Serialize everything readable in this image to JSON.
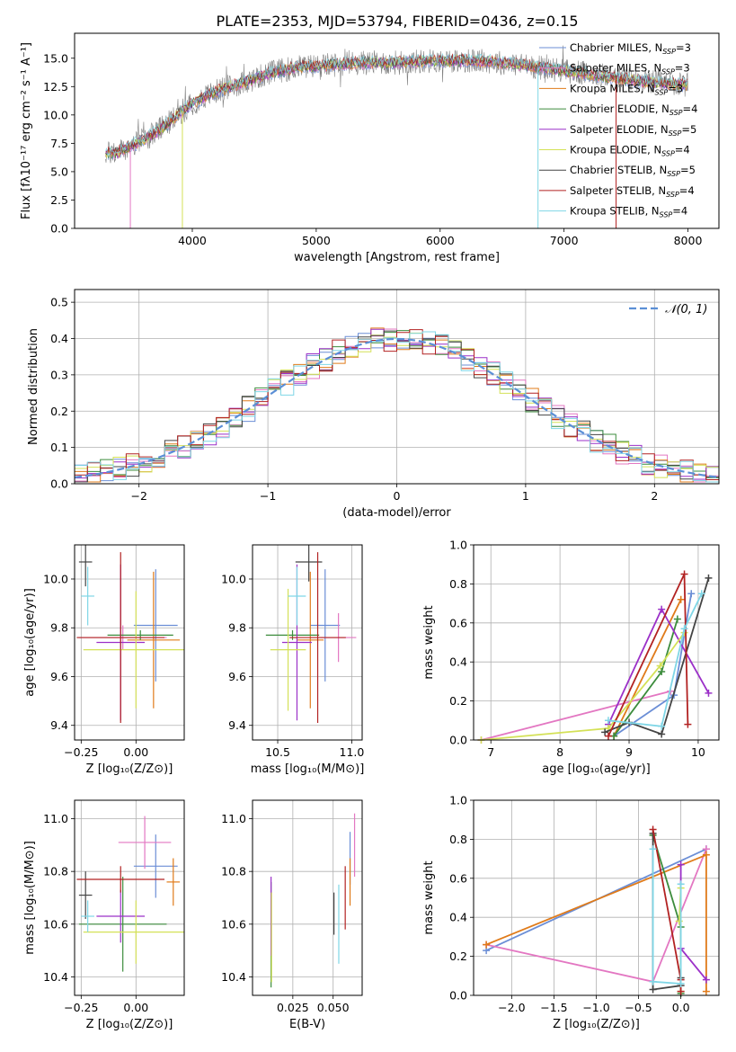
{
  "figure_title": "PLATE=2353, MJD=53794, FIBERID=0436, z=0.15",
  "colors": {
    "chabrier_miles": "#6b8ed6",
    "salpeter_miles": "#e377c2",
    "kroupa_miles": "#e07b1a",
    "chabrier_elodie": "#3c8c3c",
    "salpeter_elodie": "#9b30c8",
    "kroupa_elodie": "#d4e157",
    "chabrier_stelib": "#444444",
    "salpeter_stelib": "#b22222",
    "kroupa_stelib": "#7fd6e6",
    "data_spectrum": "#7f7f7f",
    "normal_curve": "#5b8fd6"
  },
  "chart_data": [
    {
      "id": "spectrum",
      "type": "line",
      "xlabel": "wavelength [Angstrom, rest frame]",
      "ylabel": "Flux [fλ10⁻¹⁷ erg cm⁻² s⁻¹ A⁻¹]",
      "xlim": [
        3050,
        8250
      ],
      "ylim": [
        0,
        17.2
      ],
      "xticks": [
        "4000",
        "5000",
        "6000",
        "7000",
        "8000"
      ],
      "yticks": [
        "0.0",
        "2.5",
        "5.0",
        "7.5",
        "10.0",
        "12.5",
        "15.0"
      ],
      "grid": false,
      "legend_position": "right",
      "continuum": [
        [
          3300,
          6.6
        ],
        [
          3400,
          6.7
        ],
        [
          3500,
          7.2
        ],
        [
          3600,
          7.8
        ],
        [
          3700,
          8.4
        ],
        [
          3800,
          9.2
        ],
        [
          3900,
          10.2
        ],
        [
          4000,
          11.0
        ],
        [
          4100,
          11.6
        ],
        [
          4200,
          12.1
        ],
        [
          4300,
          12.5
        ],
        [
          4400,
          12.8
        ],
        [
          4500,
          13.2
        ],
        [
          4600,
          13.6
        ],
        [
          4700,
          13.9
        ],
        [
          4800,
          14.1
        ],
        [
          4900,
          14.3
        ],
        [
          5000,
          14.3
        ],
        [
          5100,
          14.4
        ],
        [
          5200,
          14.5
        ],
        [
          5400,
          14.6
        ],
        [
          5600,
          14.6
        ],
        [
          5800,
          14.7
        ],
        [
          6000,
          14.8
        ],
        [
          6200,
          14.8
        ],
        [
          6400,
          14.7
        ],
        [
          6600,
          14.5
        ],
        [
          6800,
          14.2
        ],
        [
          7000,
          13.9
        ],
        [
          7200,
          13.6
        ],
        [
          7400,
          13.3
        ],
        [
          7600,
          13.0
        ],
        [
          7800,
          12.8
        ],
        [
          8000,
          12.6
        ]
      ],
      "legend": [
        {
          "label": "Chabrier MILES, N",
          "sub": "SSP",
          "tail": "=3",
          "color_key": "chabrier_miles"
        },
        {
          "label": "Salpeter MILES, N",
          "sub": "SSP",
          "tail": "=3",
          "color_key": "salpeter_miles"
        },
        {
          "label": "Kroupa MILES, N",
          "sub": "SSP",
          "tail": "=3",
          "color_key": "kroupa_miles"
        },
        {
          "label": "Chabrier ELODIE, N",
          "sub": "SSP",
          "tail": "=4",
          "color_key": "chabrier_elodie"
        },
        {
          "label": "Salpeter ELODIE, N",
          "sub": "SSP",
          "tail": "=5",
          "color_key": "salpeter_elodie"
        },
        {
          "label": "Kroupa ELODIE, N",
          "sub": "SSP",
          "tail": "=4",
          "color_key": "kroupa_elodie"
        },
        {
          "label": "Chabrier STELIB, N",
          "sub": "SSP",
          "tail": "=5",
          "color_key": "chabrier_stelib"
        },
        {
          "label": "Salpeter STELIB, N",
          "sub": "SSP",
          "tail": "=4",
          "color_key": "salpeter_stelib"
        },
        {
          "label": "Kroupa STELIB, N",
          "sub": "SSP",
          "tail": "=4",
          "color_key": "kroupa_stelib"
        }
      ],
      "vertical_drops": [
        {
          "x": 3500,
          "color_key": "salpeter_miles"
        },
        {
          "x": 3920,
          "color_key": "kroupa_elodie"
        },
        {
          "x": 6790,
          "color_key": "kroupa_stelib"
        },
        {
          "x": 7420,
          "color_key": "salpeter_stelib"
        }
      ]
    },
    {
      "id": "residuals",
      "type": "histogram",
      "xlabel": "(data-model)/error",
      "ylabel": "Normed distribution",
      "xlim": [
        -2.5,
        2.5
      ],
      "ylim": [
        0,
        0.535
      ],
      "xticks": [
        "−2",
        "−1",
        "0",
        "1",
        "2"
      ],
      "yticks": [
        "0.0",
        "0.1",
        "0.2",
        "0.3",
        "0.4",
        "0.5"
      ],
      "grid": true,
      "legend_position": "top-right",
      "curve_label": "𝒩(0, 1)",
      "bin_width": 0.1
    },
    {
      "id": "age_vs_Z",
      "type": "errorbar",
      "xlabel": "Z [log₁₀(Z/Z⊙)]",
      "ylabel": "age  [log₁₀(age/yr)]",
      "xlim": [
        -0.28,
        0.22
      ],
      "ylim": [
        9.34,
        10.14
      ],
      "xticks": [
        "−0.25",
        "0.00"
      ],
      "yticks": [
        "9.4",
        "9.6",
        "9.8",
        "10.0"
      ],
      "grid": true,
      "points": [
        {
          "color_key": "chabrier_miles",
          "x": 0.09,
          "xerr": 0.1,
          "y": 9.81,
          "yerr": 0.23
        },
        {
          "color_key": "salpeter_miles",
          "x": -0.06,
          "xerr": 0.2,
          "y": 9.76,
          "yerr": 0.05
        },
        {
          "color_key": "kroupa_miles",
          "x": 0.08,
          "xerr": 0.12,
          "y": 9.75,
          "yerr": 0.28
        },
        {
          "color_key": "chabrier_elodie",
          "x": 0.02,
          "xerr": 0.15,
          "y": 9.77,
          "yerr": 0.02
        },
        {
          "color_key": "salpeter_elodie",
          "x": -0.07,
          "xerr": 0.11,
          "y": 9.74,
          "yerr": 0.32
        },
        {
          "color_key": "kroupa_elodie",
          "x": 0.0,
          "xerr": 0.24,
          "y": 9.71,
          "yerr": 0.24
        },
        {
          "color_key": "chabrier_stelib",
          "x": -0.23,
          "xerr": 0.03,
          "y": 10.07,
          "yerr": 0.1
        },
        {
          "color_key": "salpeter_stelib",
          "x": -0.07,
          "xerr": 0.2,
          "y": 9.76,
          "yerr": 0.35
        },
        {
          "color_key": "kroupa_stelib",
          "x": -0.22,
          "xerr": 0.03,
          "y": 9.93,
          "yerr": 0.12
        }
      ]
    },
    {
      "id": "age_vs_mass",
      "type": "errorbar",
      "xlabel": "mass [log₁₀(M/M⊙)]",
      "ylabel": "",
      "xlim": [
        10.33,
        11.07
      ],
      "ylim": [
        9.34,
        10.14
      ],
      "xticks": [
        "10.5",
        "11.0"
      ],
      "yticks": [
        "9.4",
        "9.6",
        "9.8",
        "10.0"
      ],
      "grid": true,
      "points": [
        {
          "color_key": "chabrier_miles",
          "x": 10.82,
          "xerr": 0.1,
          "y": 9.81,
          "yerr": 0.23
        },
        {
          "color_key": "salpeter_miles",
          "x": 10.91,
          "xerr": 0.12,
          "y": 9.76,
          "yerr": 0.1
        },
        {
          "color_key": "kroupa_miles",
          "x": 10.72,
          "xerr": 0.09,
          "y": 9.75,
          "yerr": 0.28
        },
        {
          "color_key": "chabrier_elodie",
          "x": 10.6,
          "xerr": 0.18,
          "y": 9.77,
          "yerr": 0.02
        },
        {
          "color_key": "salpeter_elodie",
          "x": 10.63,
          "xerr": 0.1,
          "y": 9.74,
          "yerr": 0.32
        },
        {
          "color_key": "kroupa_elodie",
          "x": 10.57,
          "xerr": 0.12,
          "y": 9.71,
          "yerr": 0.25
        },
        {
          "color_key": "chabrier_stelib",
          "x": 10.71,
          "xerr": 0.09,
          "y": 10.07,
          "yerr": 0.08
        },
        {
          "color_key": "salpeter_stelib",
          "x": 10.77,
          "xerr": 0.19,
          "y": 9.76,
          "yerr": 0.35
        },
        {
          "color_key": "kroupa_stelib",
          "x": 10.63,
          "xerr": 0.06,
          "y": 9.93,
          "yerr": 0.12
        }
      ]
    },
    {
      "id": "mass_weight_vs_age",
      "type": "line",
      "xlabel": "age  [log₁₀(age/yr)]",
      "ylabel": "mass weight",
      "xlim": [
        6.75,
        10.3
      ],
      "ylim": [
        0,
        1
      ],
      "xticks": [
        "7",
        "8",
        "9",
        "10"
      ],
      "yticks": [
        "0.0",
        "0.2",
        "0.4",
        "0.6",
        "0.8",
        "1.0"
      ],
      "grid": true,
      "series": [
        {
          "color_key": "chabrier_miles",
          "x": [
            8.78,
            9.65,
            9.9
          ],
          "y": [
            0.02,
            0.23,
            0.75
          ]
        },
        {
          "color_key": "salpeter_miles",
          "x": [
            6.86,
            9.6
          ],
          "y": [
            0.0,
            0.25
          ]
        },
        {
          "color_key": "kroupa_miles",
          "x": [
            8.78,
            9.75
          ],
          "y": [
            0.02,
            0.72
          ]
        },
        {
          "color_key": "chabrier_elodie",
          "x": [
            8.78,
            9.47,
            9.7
          ],
          "y": [
            0.02,
            0.35,
            0.62
          ]
        },
        {
          "color_key": "salpeter_elodie",
          "x": [
            8.7,
            9.47,
            10.15
          ],
          "y": [
            0.08,
            0.67,
            0.24
          ]
        },
        {
          "color_key": "kroupa_elodie",
          "x": [
            6.86,
            8.7,
            9.45,
            9.8
          ],
          "y": [
            0.0,
            0.06,
            0.38,
            0.55
          ]
        },
        {
          "color_key": "chabrier_stelib",
          "x": [
            8.65,
            9.0,
            9.47,
            10.15
          ],
          "y": [
            0.04,
            0.09,
            0.03,
            0.83
          ]
        },
        {
          "color_key": "salpeter_stelib",
          "x": [
            8.7,
            9.8,
            9.85
          ],
          "y": [
            0.02,
            0.85,
            0.08
          ]
        },
        {
          "color_key": "kroupa_stelib",
          "x": [
            8.7,
            9.47,
            9.8,
            10.05
          ],
          "y": [
            0.1,
            0.07,
            0.57,
            0.75
          ]
        }
      ]
    },
    {
      "id": "mass_vs_Z",
      "type": "errorbar",
      "xlabel": "Z [log₁₀(Z/Z⊙)]",
      "ylabel": "mass [log₁₀(M/M⊙)]",
      "xlim": [
        -0.28,
        0.22
      ],
      "ylim": [
        10.33,
        11.07
      ],
      "xticks": [
        "−0.25",
        "0.00"
      ],
      "yticks": [
        "10.4",
        "10.6",
        "10.8",
        "11.0"
      ],
      "grid": true,
      "points": [
        {
          "color_key": "chabrier_miles",
          "x": 0.09,
          "xerr": 0.1,
          "y": 10.82,
          "yerr": 0.12
        },
        {
          "color_key": "salpeter_miles",
          "x": 0.04,
          "xerr": 0.12,
          "y": 10.91,
          "yerr": 0.1
        },
        {
          "color_key": "kroupa_miles",
          "x": 0.17,
          "xerr": 0.03,
          "y": 10.76,
          "yerr": 0.09
        },
        {
          "color_key": "chabrier_elodie",
          "x": -0.06,
          "xerr": 0.2,
          "y": 10.6,
          "yerr": 0.18
        },
        {
          "color_key": "salpeter_elodie",
          "x": -0.07,
          "xerr": 0.11,
          "y": 10.63,
          "yerr": 0.1
        },
        {
          "color_key": "kroupa_elodie",
          "x": 0.0,
          "xerr": 0.24,
          "y": 10.57,
          "yerr": 0.12
        },
        {
          "color_key": "chabrier_stelib",
          "x": -0.23,
          "xerr": 0.03,
          "y": 10.71,
          "yerr": 0.09
        },
        {
          "color_key": "salpeter_stelib",
          "x": -0.07,
          "xerr": 0.2,
          "y": 10.77,
          "yerr": 0.05
        },
        {
          "color_key": "kroupa_stelib",
          "x": -0.22,
          "xerr": 0.03,
          "y": 10.63,
          "yerr": 0.06
        }
      ]
    },
    {
      "id": "mass_vs_EBV",
      "type": "errorbar",
      "xlabel": "E(B-V)",
      "ylabel": "",
      "xlim": [
        0.0,
        0.068
      ],
      "ylim": [
        10.33,
        11.07
      ],
      "xticks": [
        "0.025",
        "0.050"
      ],
      "yticks": [
        "10.4",
        "10.6",
        "10.8",
        "11.0"
      ],
      "grid": true,
      "points": [
        {
          "color_key": "chabrier_miles",
          "x": 0.0605,
          "xerr": 0,
          "y": 10.85,
          "yerr": 0.1
        },
        {
          "color_key": "salpeter_miles",
          "x": 0.0633,
          "xerr": 0,
          "y": 10.9,
          "yerr": 0.12
        },
        {
          "color_key": "kroupa_miles",
          "x": 0.0605,
          "xerr": 0,
          "y": 10.76,
          "yerr": 0.09
        },
        {
          "color_key": "chabrier_elodie",
          "x": 0.0115,
          "xerr": 0,
          "y": 10.56,
          "yerr": 0.2
        },
        {
          "color_key": "salpeter_elodie",
          "x": 0.0115,
          "xerr": 0,
          "y": 10.63,
          "yerr": 0.15
        },
        {
          "color_key": "kroupa_elodie",
          "x": 0.0118,
          "xerr": 0,
          "y": 10.55,
          "yerr": 0.17
        },
        {
          "color_key": "chabrier_stelib",
          "x": 0.0505,
          "xerr": 0,
          "y": 10.64,
          "yerr": 0.08
        },
        {
          "color_key": "salpeter_stelib",
          "x": 0.0575,
          "xerr": 0,
          "y": 10.7,
          "yerr": 0.12
        },
        {
          "color_key": "kroupa_stelib",
          "x": 0.0535,
          "xerr": 0,
          "y": 10.6,
          "yerr": 0.15
        }
      ]
    },
    {
      "id": "mass_weight_vs_Z",
      "type": "line",
      "xlabel": "Z [log₁₀(Z/Z⊙)]",
      "ylabel": "mass weight",
      "xlim": [
        -2.45,
        0.45
      ],
      "ylim": [
        0,
        1
      ],
      "xticks": [
        "−2.0",
        "−1.5",
        "−1.0",
        "−0.5",
        "0.0"
      ],
      "yticks": [
        "0.0",
        "0.2",
        "0.4",
        "0.6",
        "0.8",
        "1.0"
      ],
      "grid": true,
      "series": [
        {
          "color_key": "chabrier_miles",
          "x": [
            -2.3,
            0.3
          ],
          "y": [
            0.23,
            0.75
          ]
        },
        {
          "color_key": "salpeter_miles",
          "x": [
            0.3,
            -0.33,
            -2.3
          ],
          "y": [
            0.75,
            0.07,
            0.26
          ]
        },
        {
          "color_key": "kroupa_miles",
          "x": [
            -2.3,
            0.3,
            0.3
          ],
          "y": [
            0.26,
            0.72,
            0.02
          ]
        },
        {
          "color_key": "chabrier_elodie",
          "x": [
            -0.33,
            0.0,
            0.0
          ],
          "y": [
            0.82,
            0.35,
            0.01
          ]
        },
        {
          "color_key": "salpeter_elodie",
          "x": [
            0.3,
            0.0,
            0.0
          ],
          "y": [
            0.08,
            0.24,
            0.67
          ]
        },
        {
          "color_key": "kroupa_elodie",
          "x": [
            0.0,
            0.0,
            -0.02
          ],
          "y": [
            0.02,
            0.55,
            0.38
          ]
        },
        {
          "color_key": "chabrier_stelib",
          "x": [
            -0.33,
            -0.33,
            0.0,
            0.0
          ],
          "y": [
            0.83,
            0.03,
            0.05,
            0.09
          ]
        },
        {
          "color_key": "salpeter_stelib",
          "x": [
            -0.33,
            0.0,
            0.0
          ],
          "y": [
            0.85,
            0.08,
            0.02
          ]
        },
        {
          "color_key": "kroupa_stelib",
          "x": [
            -0.33,
            -0.33,
            0.0,
            0.0
          ],
          "y": [
            0.75,
            0.07,
            0.06,
            0.57
          ]
        }
      ]
    }
  ]
}
